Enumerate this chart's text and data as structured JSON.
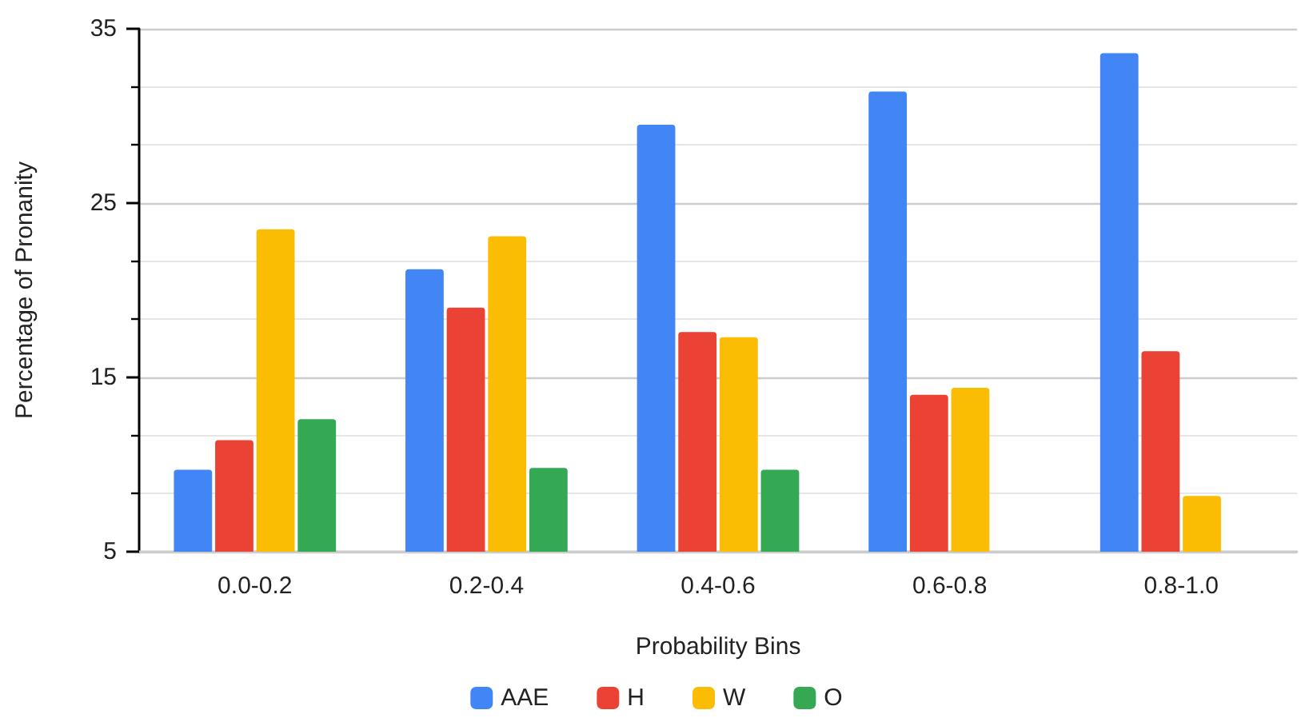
{
  "chart_data": {
    "type": "bar",
    "xlabel": "Probability Bins",
    "ylabel": "Percentage of Pronanity",
    "categories": [
      "0.0-0.2",
      "0.2-0.4",
      "0.4-0.6",
      "0.6-0.8",
      "0.8-1.0"
    ],
    "series": [
      {
        "name": "AAE",
        "color": "#4285f4",
        "values": [
          9.7,
          21.2,
          29.5,
          31.4,
          33.6
        ]
      },
      {
        "name": "H",
        "color": "#ea4335",
        "values": [
          11.4,
          19.0,
          17.6,
          14.0,
          16.5
        ]
      },
      {
        "name": "W",
        "color": "#fbbc04",
        "values": [
          23.5,
          23.1,
          17.3,
          14.4,
          8.2
        ]
      },
      {
        "name": "O",
        "color": "#34a853",
        "values": [
          12.6,
          9.8,
          9.7,
          null,
          null
        ]
      }
    ],
    "ylim": [
      5,
      35
    ],
    "yticks": [
      5,
      15,
      25,
      35
    ],
    "grid": "y",
    "legend": "bottom"
  }
}
